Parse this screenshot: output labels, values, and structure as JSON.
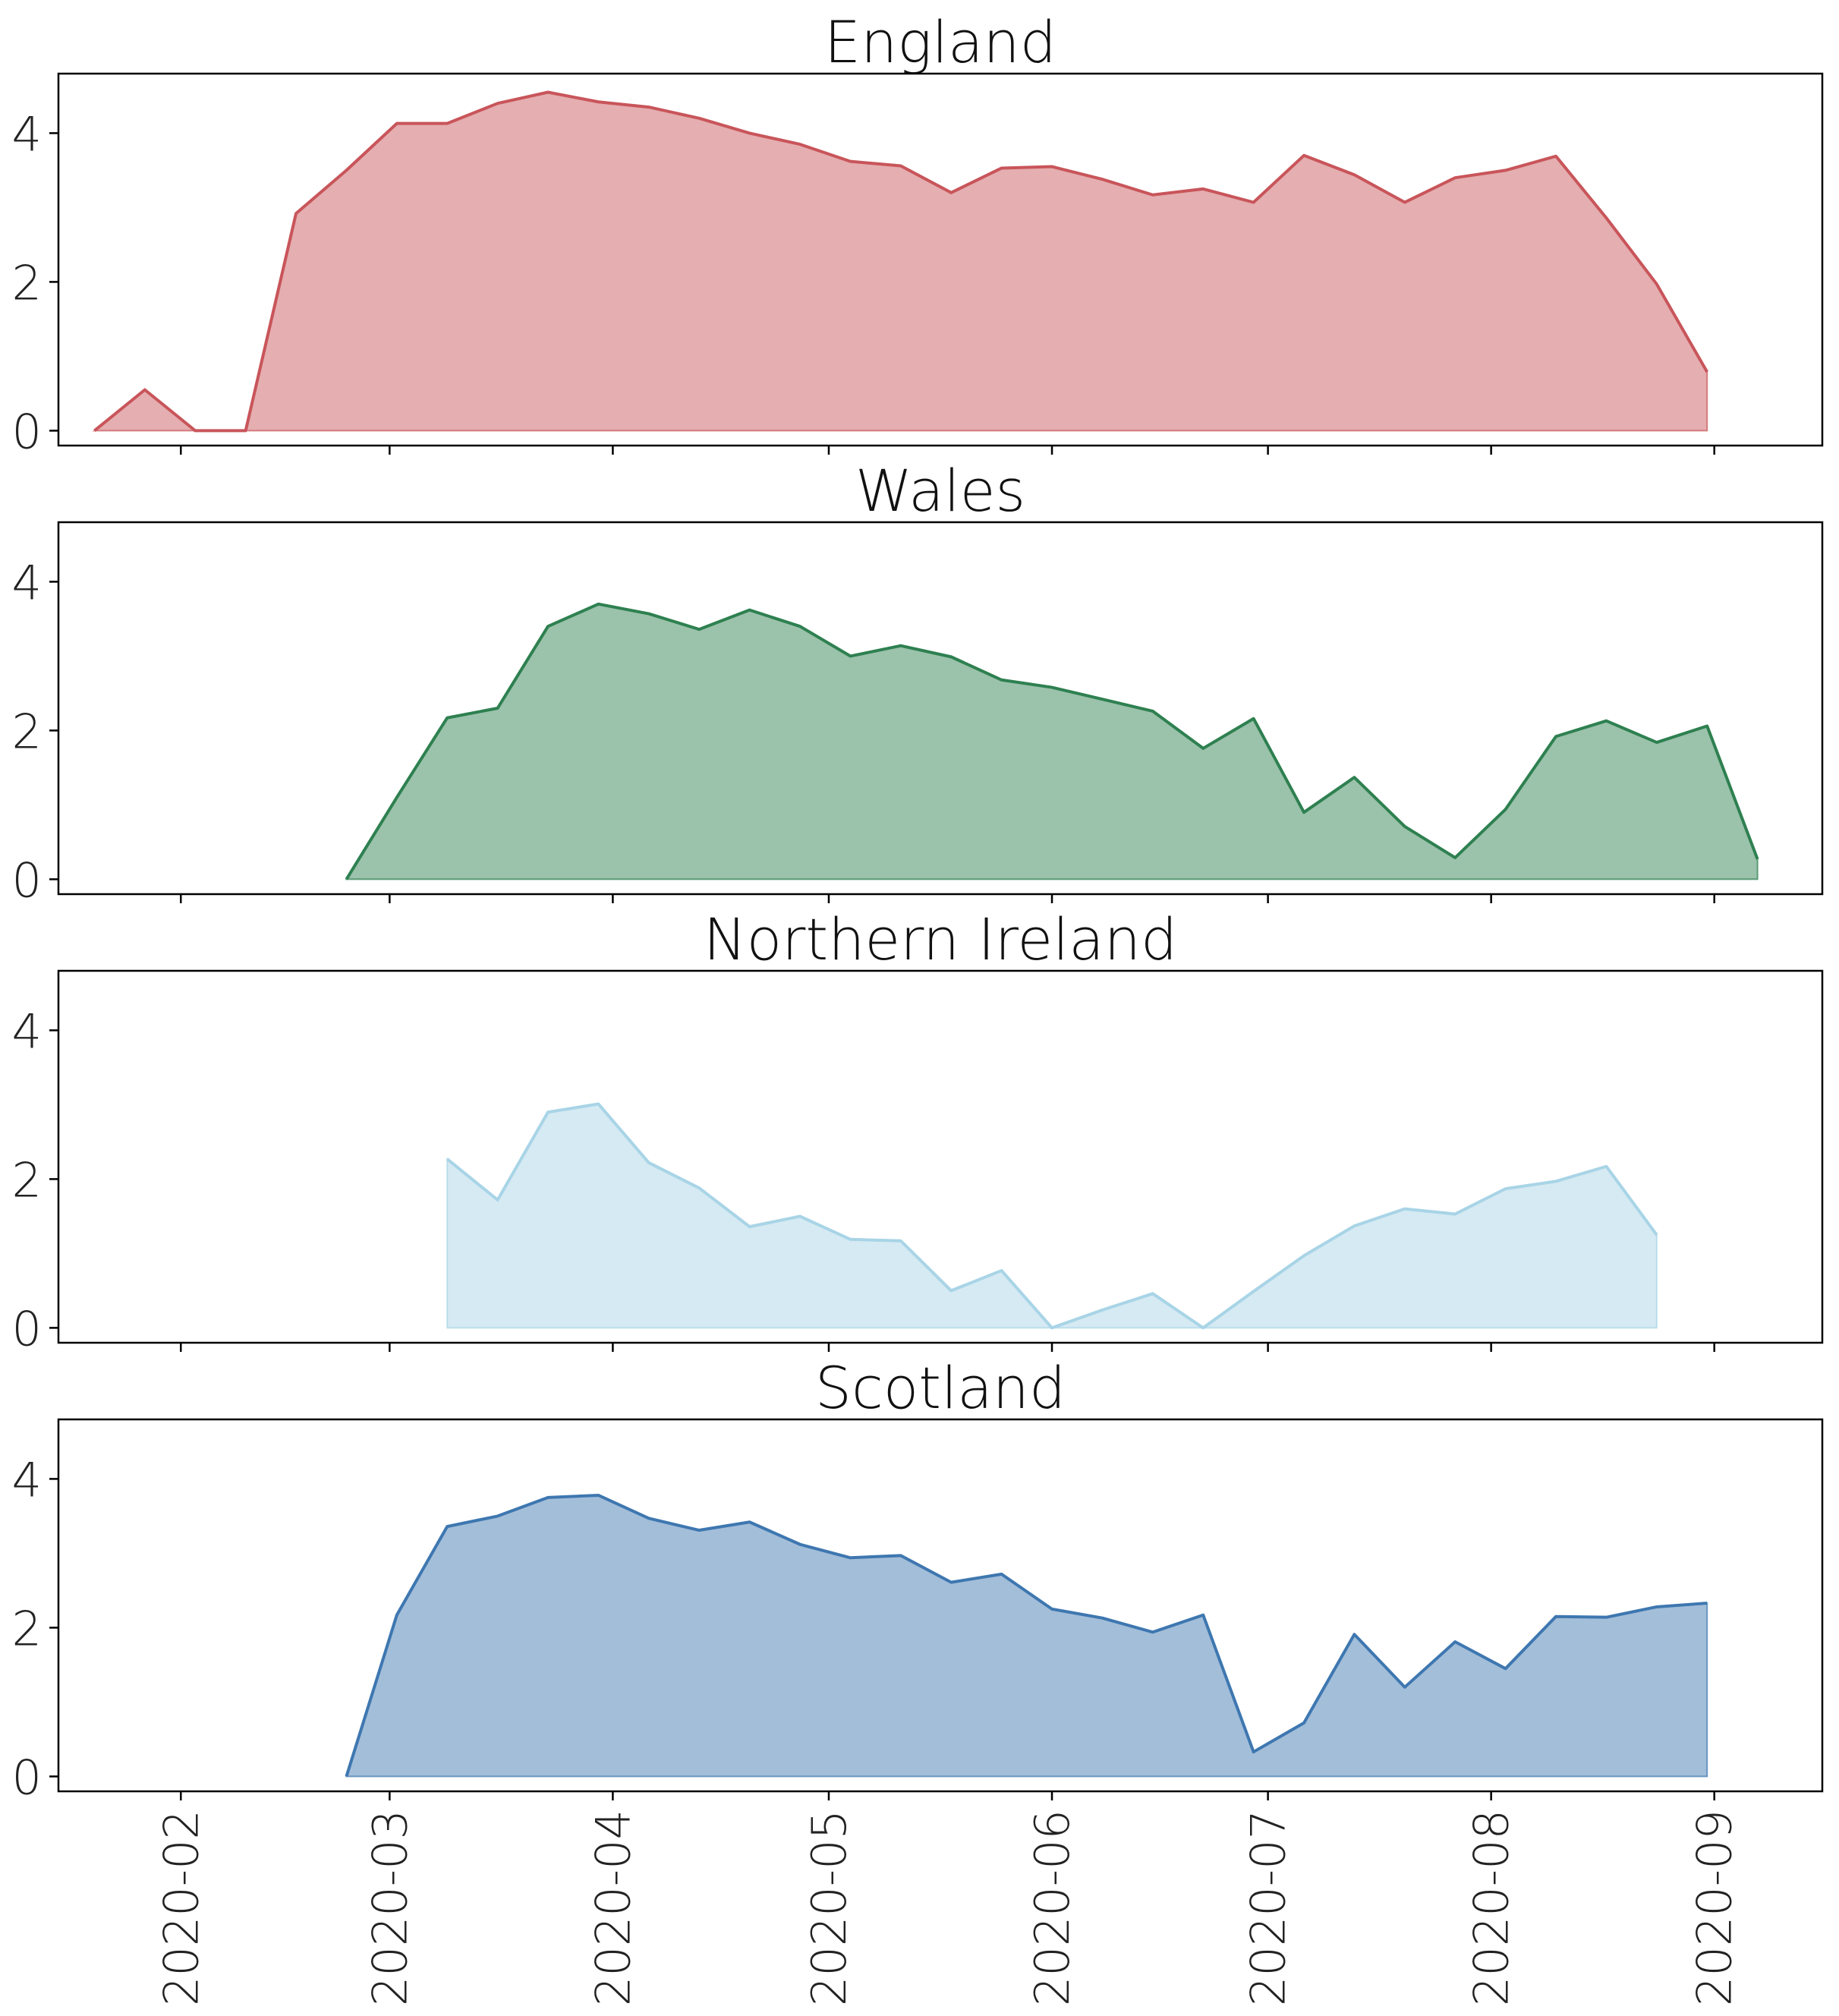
{
  "colors": {
    "england": "#c8555a",
    "wales": "#2e8050",
    "northern_ireland": "#a8d4e6",
    "scotland": "#3e77b0"
  },
  "chart_data": {
    "type": "area",
    "sharex": true,
    "x_axis": {
      "type": "date",
      "range": [
        "2020-01-15",
        "2020-09-16"
      ],
      "ticks": [
        "2020-02-01",
        "2020-03-01",
        "2020-04-01",
        "2020-05-01",
        "2020-06-01",
        "2020-07-01",
        "2020-08-01",
        "2020-09-01"
      ],
      "tick_labels": [
        "2020-02",
        "2020-03",
        "2020-04",
        "2020-05",
        "2020-06",
        "2020-07",
        "2020-08",
        "2020-09"
      ],
      "tick_label_rotation": 90
    },
    "y_axis": {
      "range": [
        -0.2,
        4.8
      ],
      "ticks": [
        0,
        2,
        4
      ],
      "tick_labels": [
        "0",
        "2",
        "4"
      ]
    },
    "grid": false,
    "panels": [
      {
        "title": "England",
        "color_key": "england",
        "x": [
          "2020-01-20",
          "2020-01-27",
          "2020-02-03",
          "2020-02-10",
          "2020-02-17",
          "2020-02-24",
          "2020-03-02",
          "2020-03-09",
          "2020-03-16",
          "2020-03-23",
          "2020-03-30",
          "2020-04-06",
          "2020-04-13",
          "2020-04-20",
          "2020-04-27",
          "2020-05-04",
          "2020-05-11",
          "2020-05-18",
          "2020-05-25",
          "2020-06-01",
          "2020-06-08",
          "2020-06-15",
          "2020-06-22",
          "2020-06-29",
          "2020-07-06",
          "2020-07-13",
          "2020-07-20",
          "2020-07-27",
          "2020-08-03",
          "2020-08-10",
          "2020-08-17",
          "2020-08-24",
          "2020-08-31",
          "2020-09-07"
        ],
        "y": [
          0,
          0.55,
          0,
          0,
          2.92,
          3.5,
          4.13,
          4.13,
          4.4,
          4.55,
          4.42,
          4.35,
          4.2,
          4.0,
          3.85,
          3.62,
          3.56,
          3.2,
          3.53,
          3.55,
          3.38,
          3.17,
          3.25,
          3.07,
          3.7,
          3.44,
          3.07,
          3.4,
          3.5,
          3.69,
          2.86,
          1.97,
          0.79,
          null
        ]
      },
      {
        "title": "Wales",
        "color_key": "wales",
        "x": [
          "2020-02-24",
          "2020-03-02",
          "2020-03-09",
          "2020-03-16",
          "2020-03-23",
          "2020-03-30",
          "2020-04-06",
          "2020-04-13",
          "2020-04-20",
          "2020-04-27",
          "2020-05-04",
          "2020-05-11",
          "2020-05-18",
          "2020-05-25",
          "2020-06-01",
          "2020-06-08",
          "2020-06-15",
          "2020-06-22",
          "2020-06-29",
          "2020-07-06",
          "2020-07-13",
          "2020-07-20",
          "2020-07-27",
          "2020-08-03",
          "2020-08-10",
          "2020-08-17",
          "2020-08-24",
          "2020-08-31",
          "2020-09-07"
        ],
        "y": [
          0,
          1.1,
          2.17,
          2.3,
          3.4,
          3.7,
          3.57,
          3.36,
          3.62,
          3.4,
          3.0,
          3.14,
          2.99,
          2.68,
          2.58,
          2.42,
          2.26,
          1.76,
          2.16,
          0.9,
          1.37,
          0.71,
          0.29,
          0.94,
          1.92,
          2.13,
          1.84,
          2.06,
          0.27
        ]
      },
      {
        "title": "Northern Ireland",
        "color_key": "northern_ireland",
        "x": [
          "2020-03-09",
          "2020-03-16",
          "2020-03-23",
          "2020-03-30",
          "2020-04-06",
          "2020-04-13",
          "2020-04-20",
          "2020-04-27",
          "2020-05-04",
          "2020-05-11",
          "2020-05-18",
          "2020-05-25",
          "2020-06-01",
          "2020-06-08",
          "2020-06-15",
          "2020-06-22",
          "2020-06-29",
          "2020-07-06",
          "2020-07-13",
          "2020-07-20",
          "2020-07-27",
          "2020-08-03",
          "2020-08-10",
          "2020-08-17",
          "2020-08-24",
          "2020-08-31"
        ],
        "y": [
          2.27,
          1.72,
          2.9,
          3.01,
          2.22,
          1.88,
          1.36,
          1.5,
          1.19,
          1.17,
          0.5,
          0.77,
          0,
          0.24,
          0.46,
          0,
          0.49,
          0.97,
          1.37,
          1.6,
          1.53,
          1.87,
          1.97,
          2.17,
          1.25,
          null
        ]
      },
      {
        "title": "Scotland",
        "color_key": "scotland",
        "x": [
          "2020-02-24",
          "2020-03-02",
          "2020-03-09",
          "2020-03-16",
          "2020-03-23",
          "2020-03-30",
          "2020-04-06",
          "2020-04-13",
          "2020-04-20",
          "2020-04-27",
          "2020-05-04",
          "2020-05-11",
          "2020-05-18",
          "2020-05-25",
          "2020-06-01",
          "2020-06-08",
          "2020-06-15",
          "2020-06-22",
          "2020-06-29",
          "2020-07-06",
          "2020-07-13",
          "2020-07-20",
          "2020-07-27",
          "2020-08-03",
          "2020-08-10",
          "2020-08-17",
          "2020-08-24",
          "2020-08-31"
        ],
        "y": [
          0,
          2.17,
          3.36,
          3.5,
          3.75,
          3.78,
          3.47,
          3.31,
          3.42,
          3.12,
          2.94,
          2.97,
          2.61,
          2.72,
          2.25,
          2.13,
          1.94,
          2.17,
          0.33,
          0.72,
          1.91,
          1.2,
          1.81,
          1.45,
          2.15,
          2.14,
          2.28,
          2.33
        ]
      }
    ]
  }
}
